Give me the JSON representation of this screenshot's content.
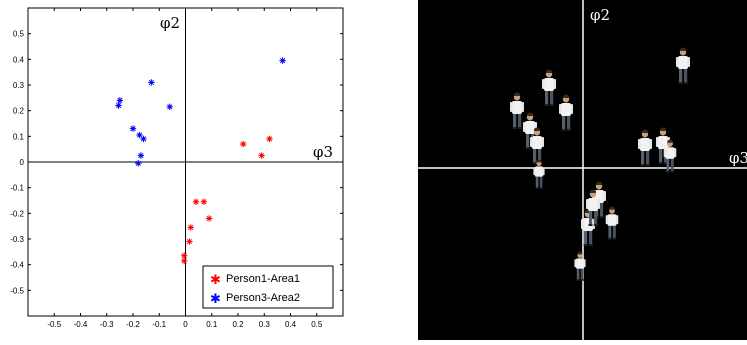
{
  "chart_data": {
    "type": "scatter",
    "title": "",
    "axis_labels": {
      "vertical": "φ2",
      "horizontal": "φ3"
    },
    "xlim": [
      -0.6,
      0.6
    ],
    "ylim": [
      -0.6,
      0.6
    ],
    "x_ticks": [
      "-0.5",
      "-0.4",
      "-0.3",
      "-0.2",
      "-0.1",
      "0",
      "0.1",
      "0.2",
      "0.3",
      "0.4",
      "0.5"
    ],
    "y_ticks": [
      "0.5",
      "0.4",
      "0.3",
      "0.2",
      "0.1",
      "0",
      "-0.1",
      "-0.2",
      "-0.3",
      "-0.4",
      "-0.5"
    ],
    "grid": false,
    "legend_position": "bottom-right",
    "series": [
      {
        "name": "Person1-Area1",
        "color": "#ff0000",
        "marker": "*",
        "points": [
          [
            0.22,
            0.07
          ],
          [
            0.29,
            0.025
          ],
          [
            0.32,
            0.09
          ],
          [
            0.04,
            -0.155
          ],
          [
            0.07,
            -0.155
          ],
          [
            0.09,
            -0.22
          ],
          [
            0.02,
            -0.255
          ],
          [
            0.015,
            -0.31
          ],
          [
            -0.005,
            -0.365
          ],
          [
            -0.005,
            -0.385
          ]
        ]
      },
      {
        "name": "Person3-Area2",
        "color": "#0000ff",
        "marker": "*",
        "points": [
          [
            0.37,
            0.395
          ],
          [
            -0.13,
            0.31
          ],
          [
            -0.06,
            0.215
          ],
          [
            -0.25,
            0.24
          ],
          [
            -0.255,
            0.22
          ],
          [
            -0.2,
            0.13
          ],
          [
            -0.175,
            0.105
          ],
          [
            -0.16,
            0.09
          ],
          [
            -0.17,
            0.025
          ],
          [
            -0.18,
            -0.005
          ]
        ]
      }
    ]
  },
  "photo_panel": {
    "axis_labels": {
      "vertical": "φ2",
      "horizontal": "φ3"
    },
    "axis_color": "#ffffff",
    "background": "#000000"
  }
}
